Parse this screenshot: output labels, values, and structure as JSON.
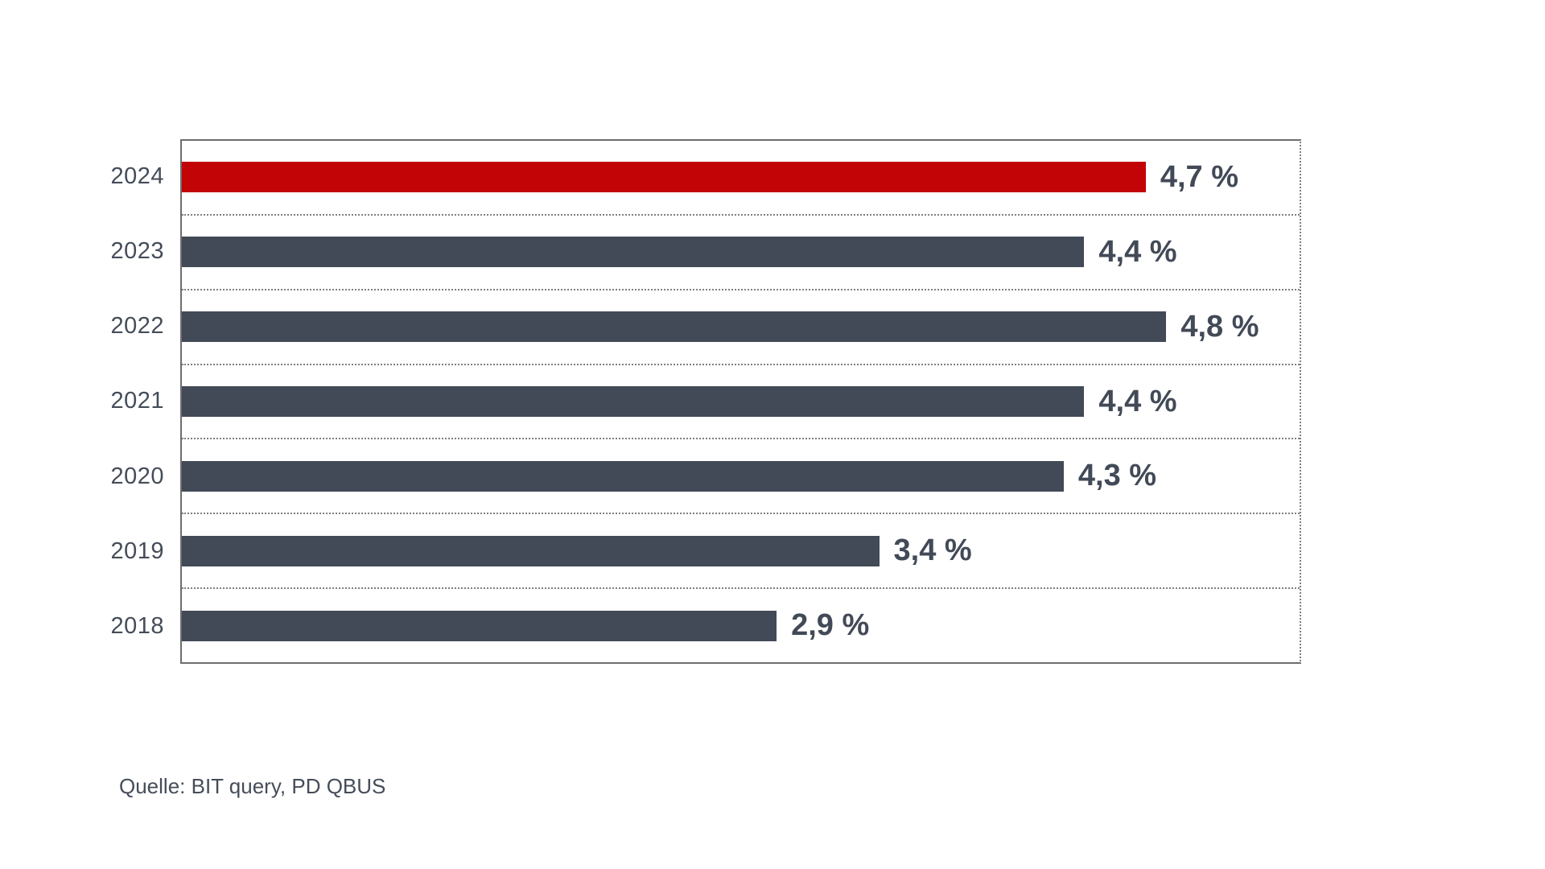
{
  "chart_data": {
    "type": "bar",
    "orientation": "horizontal",
    "title": "",
    "xlabel": "",
    "ylabel": "",
    "categories": [
      "2024",
      "2023",
      "2022",
      "2021",
      "2020",
      "2019",
      "2018"
    ],
    "values": [
      4.7,
      4.4,
      4.8,
      4.4,
      4.3,
      3.4,
      2.9
    ],
    "value_labels": [
      "4,7 %",
      "4,4 %",
      "4,8 %",
      "4,4 %",
      "4,3 %",
      "3,4 %",
      "2,9 %"
    ],
    "xlim": [
      0,
      5.45
    ],
    "grid": "dotted horizontal separators between rows; dotted right border; solid top, left and bottom plot borders",
    "legend_position": "none",
    "highlight_category": "2024",
    "colors": {
      "highlight_bar": "#C30406",
      "default_bar": "#424A57",
      "value_text": "#424A57",
      "axis_text": "#454D59",
      "solid_border": "#6E6E6E",
      "dotted_border": "#7F7F7F"
    }
  },
  "source": {
    "text": "Quelle: BIT query, PD QBUS"
  }
}
